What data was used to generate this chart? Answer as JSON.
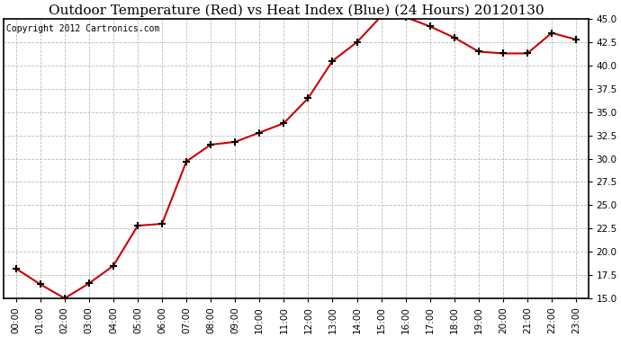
{
  "title": "Outdoor Temperature (Red) vs Heat Index (Blue) (24 Hours) 20120130",
  "copyright_text": "Copyright 2012 Cartronics.com",
  "hours": [
    0,
    1,
    2,
    3,
    4,
    5,
    6,
    7,
    8,
    9,
    10,
    11,
    12,
    13,
    14,
    15,
    16,
    17,
    18,
    19,
    20,
    21,
    22,
    23
  ],
  "hour_labels": [
    "00:00",
    "01:00",
    "02:00",
    "03:00",
    "04:00",
    "05:00",
    "06:00",
    "07:00",
    "08:00",
    "09:00",
    "10:00",
    "11:00",
    "12:00",
    "13:00",
    "14:00",
    "15:00",
    "16:00",
    "17:00",
    "18:00",
    "19:00",
    "20:00",
    "21:00",
    "22:00",
    "23:00"
  ],
  "temp_red": [
    18.2,
    16.5,
    15.0,
    16.6,
    18.5,
    22.8,
    23.0,
    29.7,
    31.5,
    31.8,
    32.8,
    33.8,
    36.5,
    40.5,
    42.5,
    45.3,
    45.2,
    44.2,
    43.0,
    41.5,
    41.3,
    41.3,
    43.5,
    42.8
  ],
  "line_color_red": "#cc0000",
  "marker": "+",
  "markersize": 6,
  "linewidth": 1.5,
  "ylim": [
    15.0,
    45.0
  ],
  "yticks": [
    15.0,
    17.5,
    20.0,
    22.5,
    25.0,
    27.5,
    30.0,
    32.5,
    35.0,
    37.5,
    40.0,
    42.5,
    45.0
  ],
  "bg_color": "#ffffff",
  "plot_bg_color": "#ffffff",
  "grid_color": "#bbbbbb",
  "title_fontsize": 11,
  "copyright_fontsize": 7,
  "tick_fontsize": 7.5,
  "marker_color": "#000000"
}
